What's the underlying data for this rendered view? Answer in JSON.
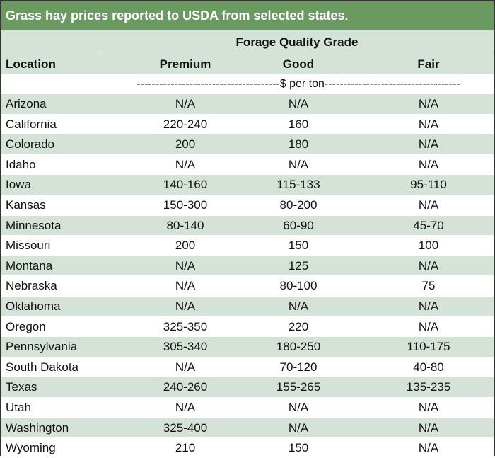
{
  "title": "Grass hay prices reported to USDA from selected states.",
  "header": {
    "group_label": "Forage Quality Grade",
    "location": "Location",
    "premium": "Premium",
    "good": "Good",
    "fair": "Fair",
    "unit": "--------------------------------------$ per ton------------------------------------"
  },
  "rows": [
    {
      "location": "Arizona",
      "premium": "N/A",
      "good": "N/A",
      "fair": "N/A"
    },
    {
      "location": "California",
      "premium": "220-240",
      "good": "160",
      "fair": "N/A"
    },
    {
      "location": "Colorado",
      "premium": "200",
      "good": "180",
      "fair": "N/A"
    },
    {
      "location": "Idaho",
      "premium": "N/A",
      "good": "N/A",
      "fair": "N/A"
    },
    {
      "location": "Iowa",
      "premium": "140-160",
      "good": "115-133",
      "fair": "95-110"
    },
    {
      "location": "Kansas",
      "premium": "150-300",
      "good": "80-200",
      "fair": "N/A"
    },
    {
      "location": "Minnesota",
      "premium": "80-140",
      "good": "60-90",
      "fair": "45-70"
    },
    {
      "location": "Missouri",
      "premium": "200",
      "good": "150",
      "fair": "100"
    },
    {
      "location": "Montana",
      "premium": "N/A",
      "good": "125",
      "fair": "N/A"
    },
    {
      "location": "Nebraska",
      "premium": "N/A",
      "good": "80-100",
      "fair": "75"
    },
    {
      "location": "Oklahoma",
      "premium": "N/A",
      "good": "N/A",
      "fair": "N/A"
    },
    {
      "location": "Oregon",
      "premium": "325-350",
      "good": "220",
      "fair": "N/A"
    },
    {
      "location": "Pennsylvania",
      "premium": "305-340",
      "good": "180-250",
      "fair": "110-175"
    },
    {
      "location": "South Dakota",
      "premium": "N/A",
      "good": "70-120",
      "fair": "40-80"
    },
    {
      "location": "Texas",
      "premium": "240-260",
      "good": "155-265",
      "fair": "135-235"
    },
    {
      "location": "Utah",
      "premium": "N/A",
      "good": "N/A",
      "fair": "N/A"
    },
    {
      "location": "Washington",
      "premium": "325-400",
      "good": "N/A",
      "fair": "N/A"
    },
    {
      "location": "Wyoming",
      "premium": "210",
      "good": "150",
      "fair": "N/A"
    }
  ]
}
